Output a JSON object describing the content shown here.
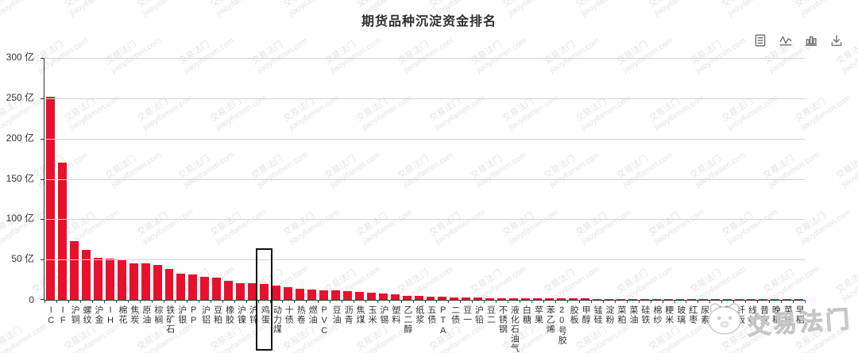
{
  "watermark": {
    "brand_cn": "交易法门",
    "brand_url": "jiaoyifamen.com",
    "color": "#e3e3e3"
  },
  "toolbox": {
    "icons": [
      "data-view-icon",
      "line-chart-icon",
      "bar-chart-icon",
      "download-icon"
    ]
  },
  "chart_data": {
    "type": "bar",
    "title": "期货品种沉淀资金排名",
    "unit": "亿",
    "bar_color": "#e8112d",
    "grid": true,
    "ylim": [
      0,
      300
    ],
    "ytick_interval": 50,
    "ytick_labels": [
      "0",
      "50 亿",
      "100 亿",
      "150 亿",
      "200 亿",
      "250 亿",
      "300 亿"
    ],
    "highlighted_category": "鸡蛋",
    "highlight_box_color": "#111111",
    "categories": [
      "IC",
      "IF",
      "沪铜",
      "螺纹",
      "沪金",
      "IH",
      "棉花",
      "焦炭",
      "原油",
      "棕榈",
      "铁矿石",
      "沪银",
      "PP",
      "沪铝",
      "豆粕",
      "橡胶",
      "沪镍",
      "沪锌",
      "鸡蛋",
      "动力煤",
      "十债",
      "热卷",
      "燃油",
      "PVC",
      "豆油",
      "沥青",
      "焦煤",
      "玉米",
      "沪锡",
      "塑料",
      "乙二醇",
      "纸浆",
      "五债",
      "PTA",
      "二债",
      "豆一",
      "沪铅",
      "豆二",
      "不锈钢",
      "液化石油气",
      "白糖",
      "苹果",
      "苯乙烯",
      "20号胶",
      "胶板",
      "甲醇",
      "锰硅",
      "淀粉",
      "菜粕",
      "菜油",
      "硅铁",
      "棉纱",
      "粳米",
      "玻璃",
      "红枣",
      "尿素",
      "粳稻",
      "强麦",
      "纤板",
      "线材",
      "普麦",
      "晚稻",
      "菜籽",
      "早稻"
    ],
    "values": [
      252,
      170,
      73,
      62,
      52,
      51,
      50,
      45.5,
      45,
      43.5,
      38.5,
      32,
      31.5,
      29,
      28,
      24,
      21,
      20.5,
      20,
      17.5,
      16,
      14,
      13,
      12,
      11.8,
      10.5,
      9.5,
      9.3,
      8,
      6.5,
      5,
      4.6,
      3.8,
      3.6,
      3.2,
      3,
      2.6,
      2.4,
      2.2,
      2.1,
      2,
      1.9,
      1.8,
      1.7,
      1.6,
      1.5,
      1.4,
      1.3,
      1.2,
      1.1,
      1,
      0.9,
      0.8,
      0.7,
      0.6,
      0.5,
      0.4,
      0.4,
      0.3,
      0.3,
      0.2,
      0.2,
      0.1,
      0.1
    ]
  }
}
